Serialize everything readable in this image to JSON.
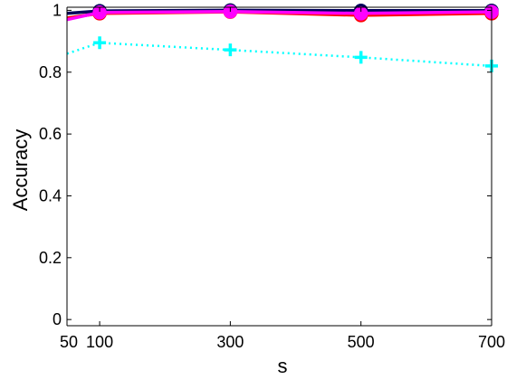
{
  "chart_data": {
    "type": "line",
    "title": "",
    "xlabel": "s",
    "ylabel": "Accuracy",
    "x": [
      50,
      100,
      300,
      500,
      700
    ],
    "x_ticks": [
      "50",
      "100",
      "300",
      "500",
      "700"
    ],
    "y_ticks": [
      "0",
      "0.2",
      "0.4",
      "0.6",
      "0.8",
      "1"
    ],
    "xlim": [
      50,
      700
    ],
    "ylim": [
      -0.02,
      1.01
    ],
    "grid": false,
    "series": [
      {
        "values": [
          0.99,
          0.998,
          1.0,
          0.999,
          0.999
        ],
        "color": "#00005a",
        "style": "solid",
        "marker": "circle"
      },
      {
        "values": [
          0.975,
          0.99,
          0.995,
          0.984,
          0.99
        ],
        "color": "#ff0000",
        "style": "solid",
        "marker": "circle"
      },
      {
        "values": [
          0.97,
          0.993,
          0.996,
          0.99,
          0.995
        ],
        "color": "#ff00ff",
        "style": "solid",
        "marker": "circle"
      },
      {
        "values": [
          0.86,
          0.895,
          0.872,
          0.848,
          0.82
        ],
        "color": "#00ffff",
        "style": "dotted",
        "marker": "plus"
      }
    ]
  }
}
